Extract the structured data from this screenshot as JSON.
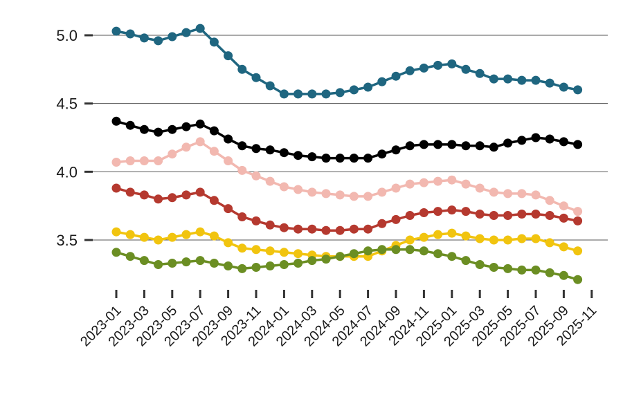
{
  "chart_data": {
    "type": "line",
    "x": [
      "2023-01",
      "2023-02",
      "2023-03",
      "2023-04",
      "2023-05",
      "2023-06",
      "2023-07",
      "2023-08",
      "2023-09",
      "2023-10",
      "2023-11",
      "2023-12",
      "2024-01",
      "2024-02",
      "2024-03",
      "2024-04",
      "2024-05",
      "2024-06",
      "2024-07",
      "2024-08",
      "2024-09",
      "2024-10",
      "2024-11",
      "2024-12",
      "2025-01",
      "2025-02",
      "2025-03",
      "2025-04",
      "2025-05",
      "2025-06",
      "2025-07",
      "2025-08",
      "2025-09",
      "2025-10"
    ],
    "x_tick_labels": [
      "2023-01",
      "2023-03",
      "2023-05",
      "2023-07",
      "2023-09",
      "2023-11",
      "2024-01",
      "2024-03",
      "2024-05",
      "2024-07",
      "2024-09",
      "2024-11",
      "2025-01",
      "2025-03",
      "2025-05",
      "2025-07",
      "2025-09",
      "2025-11"
    ],
    "y_ticks": [
      3.5,
      4.0,
      4.5,
      5.0
    ],
    "y_tick_labels": [
      "3.5",
      "4.0",
      "4.5",
      "5.0"
    ],
    "ylim": [
      3.11,
      5.2
    ],
    "grid": "horizontal",
    "series": [
      {
        "color": "#1f6680",
        "values": [
          5.03,
          5.01,
          4.98,
          4.96,
          4.99,
          5.02,
          5.05,
          4.95,
          4.85,
          4.75,
          4.69,
          4.63,
          4.57,
          4.57,
          4.57,
          4.57,
          4.58,
          4.6,
          4.62,
          4.66,
          4.7,
          4.74,
          4.76,
          4.78,
          4.79,
          4.75,
          4.72,
          4.68,
          4.68,
          4.67,
          4.67,
          4.65,
          4.62,
          4.6
        ]
      },
      {
        "color": "#000000",
        "values": [
          4.37,
          4.34,
          4.31,
          4.29,
          4.31,
          4.33,
          4.35,
          4.3,
          4.24,
          4.19,
          4.17,
          4.16,
          4.14,
          4.12,
          4.11,
          4.1,
          4.1,
          4.1,
          4.1,
          4.13,
          4.16,
          4.19,
          4.2,
          4.2,
          4.2,
          4.19,
          4.19,
          4.18,
          4.21,
          4.23,
          4.25,
          4.24,
          4.22,
          4.2
        ]
      },
      {
        "color": "#f2b8b0",
        "values": [
          4.07,
          4.08,
          4.08,
          4.08,
          4.13,
          4.18,
          4.22,
          4.15,
          4.08,
          4.01,
          3.97,
          3.93,
          3.89,
          3.87,
          3.85,
          3.84,
          3.83,
          3.82,
          3.82,
          3.85,
          3.88,
          3.91,
          3.92,
          3.93,
          3.94,
          3.91,
          3.88,
          3.85,
          3.84,
          3.84,
          3.83,
          3.79,
          3.75,
          3.71
        ]
      },
      {
        "color": "#b5392f",
        "values": [
          3.88,
          3.85,
          3.83,
          3.8,
          3.81,
          3.83,
          3.85,
          3.79,
          3.73,
          3.67,
          3.64,
          3.61,
          3.59,
          3.58,
          3.58,
          3.57,
          3.57,
          3.58,
          3.58,
          3.62,
          3.65,
          3.68,
          3.7,
          3.71,
          3.72,
          3.71,
          3.69,
          3.68,
          3.68,
          3.69,
          3.69,
          3.68,
          3.66,
          3.64
        ]
      },
      {
        "color": "#f1c40f",
        "values": [
          3.56,
          3.54,
          3.52,
          3.5,
          3.52,
          3.54,
          3.56,
          3.53,
          3.48,
          3.44,
          3.43,
          3.42,
          3.41,
          3.4,
          3.39,
          3.38,
          3.38,
          3.38,
          3.38,
          3.42,
          3.46,
          3.5,
          3.52,
          3.54,
          3.55,
          3.53,
          3.51,
          3.5,
          3.5,
          3.51,
          3.51,
          3.48,
          3.45,
          3.42
        ]
      },
      {
        "color": "#6b8e23",
        "values": [
          3.41,
          3.38,
          3.35,
          3.32,
          3.33,
          3.34,
          3.35,
          3.33,
          3.31,
          3.29,
          3.3,
          3.31,
          3.32,
          3.33,
          3.35,
          3.36,
          3.38,
          3.4,
          3.42,
          3.43,
          3.43,
          3.43,
          3.42,
          3.4,
          3.38,
          3.35,
          3.32,
          3.3,
          3.29,
          3.28,
          3.28,
          3.26,
          3.24,
          3.21
        ]
      }
    ]
  }
}
